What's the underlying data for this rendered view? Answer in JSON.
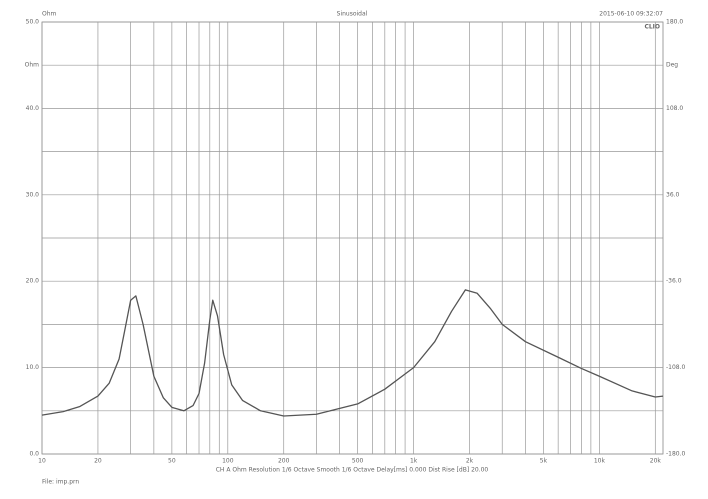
{
  "chart_data": {
    "type": "line",
    "log_x": true,
    "title": "Sinusoidal",
    "y_unit_corner": "Ohm",
    "timestamp": "2015-06-10 09:32:07",
    "brand": "CLIO",
    "footer": "CH A   Ohm   Resolution 1/6 Octave   Smooth 1/6 Octave   Delay[ms] 0.000   Dist Rise [dB] 20.00",
    "file": "File: imp.prn",
    "x": [
      10,
      13,
      16,
      20,
      23,
      26,
      28,
      30,
      32,
      35,
      40,
      45,
      50,
      58,
      65,
      70,
      75,
      80,
      83,
      88,
      95,
      105,
      120,
      150,
      200,
      300,
      500,
      700,
      1000,
      1300,
      1600,
      1900,
      2200,
      2600,
      3000,
      4000,
      6000,
      8000,
      10000,
      15000,
      20000,
      22000
    ],
    "series": [
      {
        "name": "Ohm",
        "color": "#555555",
        "values": [
          4.5,
          4.9,
          5.5,
          6.7,
          8.2,
          11.0,
          14.5,
          17.8,
          18.3,
          15.0,
          9.0,
          6.5,
          5.4,
          5.0,
          5.6,
          7.0,
          10.5,
          15.5,
          17.8,
          16.0,
          11.5,
          8.0,
          6.2,
          5.0,
          4.4,
          4.6,
          5.8,
          7.5,
          10.0,
          13.0,
          16.5,
          19.0,
          18.6,
          16.8,
          15.0,
          13.0,
          11.2,
          9.9,
          9.0,
          7.3,
          6.6,
          6.7
        ]
      }
    ],
    "xlim": [
      10,
      22000
    ],
    "ylim": [
      0,
      50
    ],
    "y2lim": [
      -180,
      180
    ],
    "xticks": [
      10,
      20,
      50,
      100,
      200,
      500,
      {
        "value": 1000,
        "label": "1k"
      },
      {
        "value": 2000,
        "label": "2k"
      },
      {
        "value": 5000,
        "label": "5k"
      },
      {
        "value": 10000,
        "label": "10k"
      },
      {
        "value": 20000,
        "label": "20k"
      }
    ],
    "xminor": [
      30,
      40,
      60,
      70,
      80,
      90,
      300,
      400,
      600,
      700,
      800,
      900,
      3000,
      4000,
      6000,
      7000,
      8000,
      9000
    ],
    "yticks": [
      {
        "value": 0,
        "label": "0.0"
      },
      {
        "value": 10,
        "label": "10.0"
      },
      {
        "value": 20,
        "label": "20.0"
      },
      {
        "value": 30,
        "label": "30.0"
      },
      {
        "value": 40,
        "label": "40.0"
      },
      {
        "value": 45,
        "label": "Ohm"
      },
      {
        "value": 50,
        "label": "50.0"
      }
    ],
    "yminor": [
      5,
      15,
      25,
      35
    ],
    "y2ticks": [
      {
        "value": -180,
        "label": "-180.0"
      },
      {
        "value": -108,
        "label": "-108.0"
      },
      {
        "value": -36,
        "label": "-36.0"
      },
      {
        "value": 36,
        "label": "36.0"
      },
      {
        "value": 108,
        "label": "108.0"
      },
      {
        "value": 144,
        "label": "Deg"
      },
      {
        "value": 180,
        "label": "180.0"
      }
    ]
  }
}
